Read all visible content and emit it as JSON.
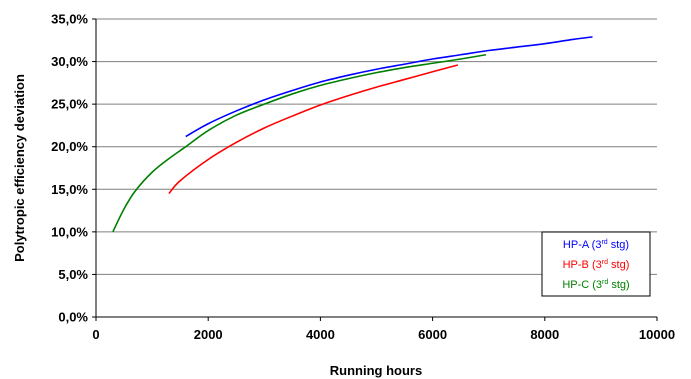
{
  "chart_data": {
    "type": "line",
    "xlabel": "Running hours",
    "ylabel": "Polytropic efficiency deviation",
    "xlim": [
      0,
      10000
    ],
    "ylim": [
      0,
      0.35
    ],
    "x_ticks": [
      "0",
      "2000",
      "4000",
      "6000",
      "8000",
      "10000"
    ],
    "y_ticks": [
      "0,0%",
      "5,0%",
      "10,0%",
      "15,0%",
      "20,0%",
      "25,0%",
      "30,0%",
      "35,0%"
    ],
    "grid": "horizontal",
    "legend_position": "bottom-right",
    "series": [
      {
        "name_main": "HP-A (3",
        "name_sup": "rd",
        "name_tail": " stg)",
        "color": "#0000ff",
        "x": [
          1600,
          2000,
          2500,
          3000,
          3500,
          4000,
          4500,
          5000,
          5500,
          6000,
          6500,
          7000,
          7500,
          8000,
          8500,
          8850
        ],
        "y": [
          0.212,
          0.227,
          0.242,
          0.255,
          0.266,
          0.276,
          0.284,
          0.291,
          0.297,
          0.303,
          0.308,
          0.313,
          0.317,
          0.321,
          0.326,
          0.329
        ]
      },
      {
        "name_main": "HP-B (3",
        "name_sup": "rd",
        "name_tail": " stg)",
        "color": "#ff0000",
        "x": [
          1300,
          1500,
          2000,
          2500,
          3000,
          3500,
          4000,
          4500,
          5000,
          5500,
          6000,
          6450
        ],
        "y": [
          0.145,
          0.16,
          0.185,
          0.205,
          0.222,
          0.236,
          0.249,
          0.26,
          0.27,
          0.279,
          0.288,
          0.296
        ]
      },
      {
        "name_main": "HP-C (3",
        "name_sup": "rd",
        "name_tail": " stg)",
        "color": "#008000",
        "x": [
          300,
          500,
          700,
          1000,
          1300,
          1600,
          2000,
          2500,
          3000,
          3500,
          4000,
          4500,
          5000,
          5500,
          6000,
          6500,
          6950
        ],
        "y": [
          0.1,
          0.127,
          0.148,
          0.17,
          0.186,
          0.2,
          0.219,
          0.237,
          0.25,
          0.262,
          0.272,
          0.28,
          0.287,
          0.293,
          0.298,
          0.303,
          0.308
        ]
      }
    ]
  }
}
